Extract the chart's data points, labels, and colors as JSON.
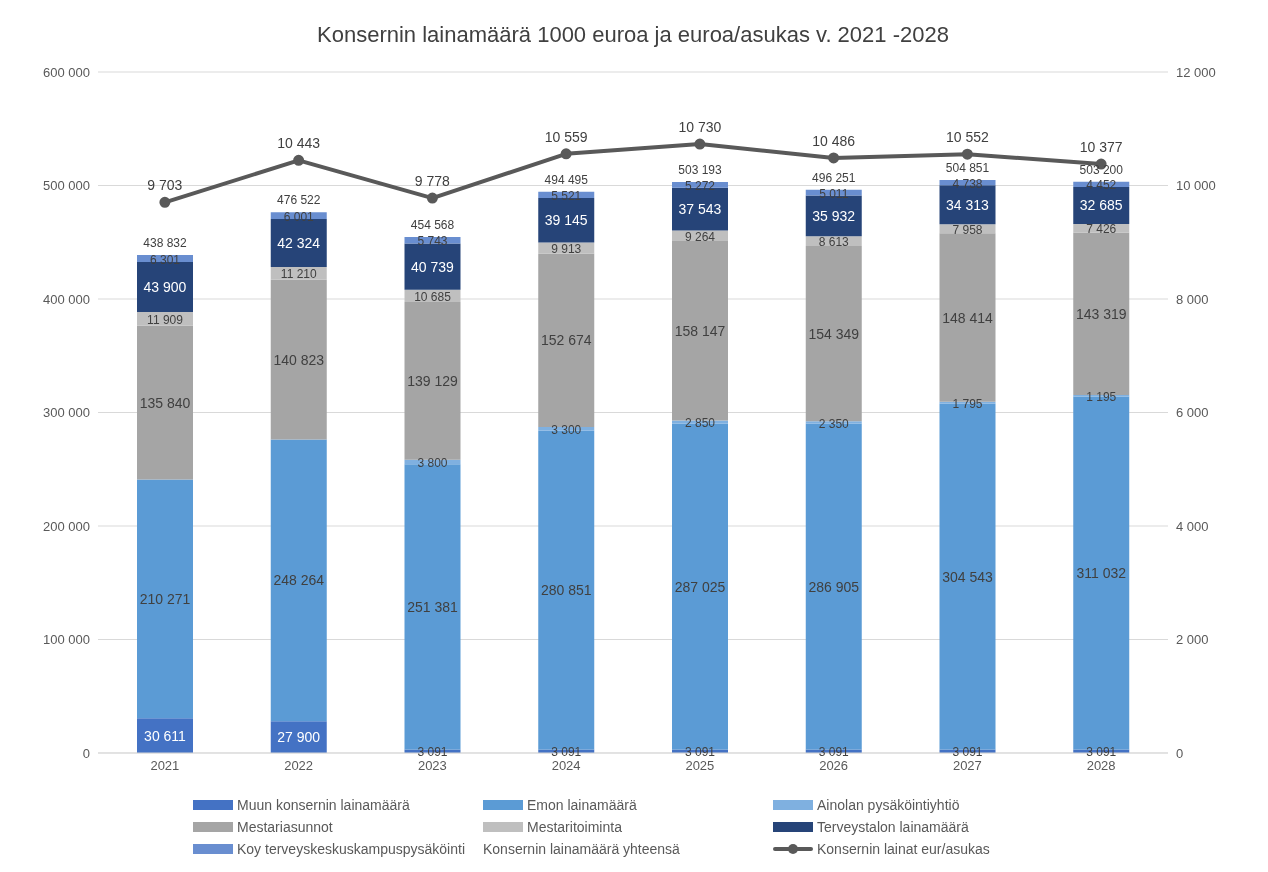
{
  "chart_data": {
    "type": "bar",
    "title": "Konsernin lainamäärä 1000 euroa ja euroa/asukas v. 2021 -2028",
    "categories": [
      "2021",
      "2022",
      "2023",
      "2024",
      "2025",
      "2026",
      "2027",
      "2028"
    ],
    "stacked": true,
    "series": [
      {
        "name": "Muun konsernin lainamäärä",
        "color": "#4472c4",
        "values": [
          30611,
          27900,
          3091,
          3091,
          3091,
          3091,
          3091,
          3091
        ],
        "value_labels": [
          "30 611",
          "27 900",
          "3 091",
          "3 091",
          "3 091",
          "3 091",
          "3 091",
          "3 091"
        ]
      },
      {
        "name": "Emon lainamäärä",
        "color": "#5b9bd5",
        "values": [
          210271,
          248264,
          251381,
          280851,
          287025,
          286905,
          304543,
          311032
        ],
        "value_labels": [
          "210 271",
          "248 264",
          "251 381",
          "280 851",
          "287 025",
          "286 905",
          "304 543",
          "311 032"
        ]
      },
      {
        "name": "Ainolan pysäköintiyhtiö",
        "color": "#7fb0e0",
        "values": [
          null,
          null,
          3800,
          3300,
          2850,
          2350,
          1795,
          1195
        ],
        "value_labels": [
          null,
          null,
          "3 800",
          "3 300",
          "2 850",
          "2 350",
          "1 795",
          "1 195"
        ]
      },
      {
        "name": "Mestariasunnot",
        "color": "#a5a5a5",
        "values": [
          135840,
          140823,
          139129,
          152674,
          158147,
          154349,
          148414,
          143319
        ],
        "value_labels": [
          "135 840",
          "140 823",
          "139 129",
          "152 674",
          "158 147",
          "154 349",
          "148 414",
          "143 319"
        ]
      },
      {
        "name": "Mestaritoiminta",
        "color": "#bfbfbf",
        "values": [
          11909,
          11210,
          10685,
          9913,
          9264,
          8613,
          7958,
          7426
        ],
        "value_labels": [
          "11 909",
          "11 210",
          "10 685",
          "9 913",
          "9 264",
          "8 613",
          "7 958",
          "7 426"
        ]
      },
      {
        "name": "Terveystalon lainamäärä",
        "color": "#264478",
        "values": [
          43900,
          42324,
          40739,
          39145,
          37543,
          35932,
          34313,
          32685
        ],
        "value_labels": [
          "43 900",
          "42 324",
          "40 739",
          "39 145",
          "37 543",
          "35 932",
          "34 313",
          "32 685"
        ]
      },
      {
        "name": "Koy terveyskeskuskampuspysäköinti",
        "color": "#698ed0",
        "values": [
          6301,
          6001,
          5743,
          5521,
          5272,
          5011,
          4738,
          4452
        ],
        "value_labels": [
          "6 301",
          "6 001",
          "5 743",
          "5 521",
          "5 272",
          "5 011",
          "4 738",
          "4 452"
        ]
      },
      {
        "name": "Konsernin lainat eur/asukas",
        "type": "line",
        "axis": "y2",
        "color": "#595959",
        "marker": "circle",
        "values": [
          9703,
          10443,
          9778,
          10559,
          10730,
          10486,
          10552,
          10377
        ],
        "value_labels": [
          "9 703",
          "10 443",
          "9 778",
          "10 559",
          "10 730",
          "10 486",
          "10 552",
          "10 377"
        ]
      }
    ],
    "ylim": [
      0,
      600000
    ],
    "yticks": [
      {
        "value": 0,
        "label": "0"
      },
      {
        "value": 100000,
        "label": "100 000"
      },
      {
        "value": 200000,
        "label": "200 000"
      },
      {
        "value": 300000,
        "label": "300 000"
      },
      {
        "value": 400000,
        "label": "400 000"
      },
      {
        "value": 500000,
        "label": "500 000"
      },
      {
        "value": 600000,
        "label": "600 000"
      }
    ],
    "y2lim": [
      0,
      12000
    ],
    "y2ticks": [
      {
        "value": 0,
        "label": "0"
      },
      {
        "value": 2000,
        "label": "2 000"
      },
      {
        "value": 4000,
        "label": "4 000"
      },
      {
        "value": 6000,
        "label": "6 000"
      },
      {
        "value": 8000,
        "label": "8 000"
      },
      {
        "value": 10000,
        "label": "10 000"
      },
      {
        "value": 12000,
        "label": "12 000"
      }
    ],
    "totals": [
      "438 832",
      "476 522",
      "454 568",
      "494 495",
      "503 193",
      "496 251",
      "504 851",
      "503 200"
    ],
    "annotations": [
      "Konsernin lainamäärä yhteensä"
    ],
    "grid": "y",
    "legend": "bottom"
  }
}
